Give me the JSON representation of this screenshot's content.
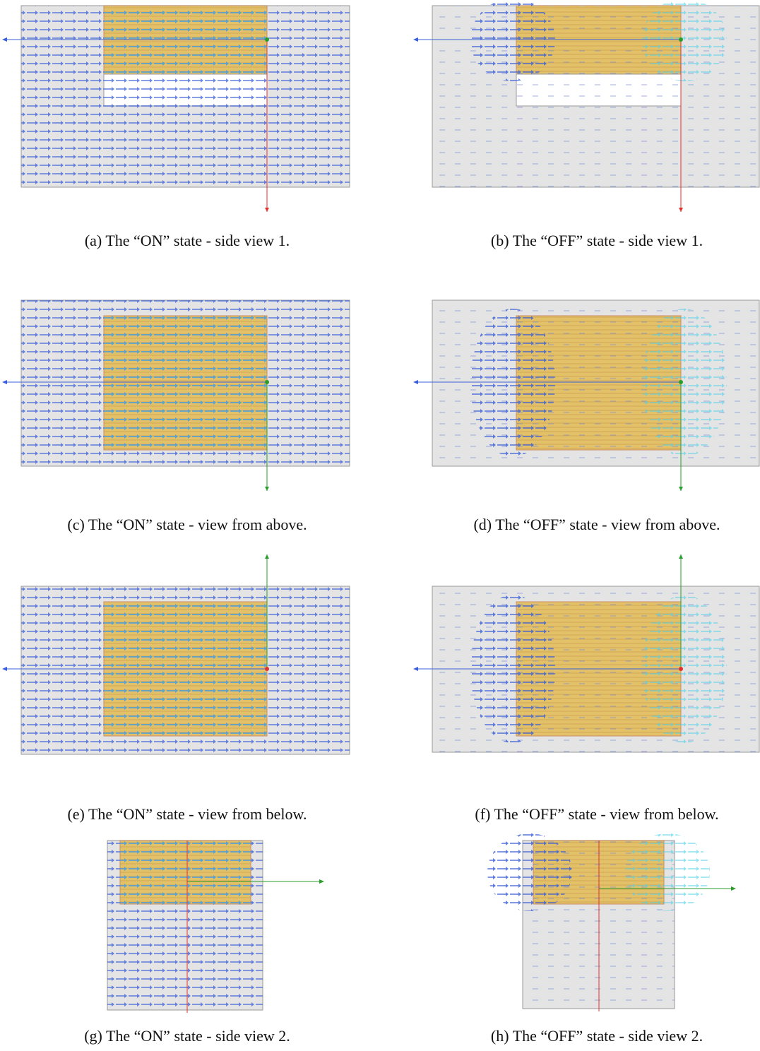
{
  "panels": [
    {
      "caption": "(a) The “ON” state - side view 1."
    },
    {
      "caption": "(b) The “OFF” state - side view 1."
    },
    {
      "caption": "(c) The “ON” state - view from above."
    },
    {
      "caption": "(d) The “OFF” state - view from above."
    },
    {
      "caption": "(e) The “ON” state - view from below."
    },
    {
      "caption": "(f) The “OFF” state - view from below."
    },
    {
      "caption": "(g) The “ON” state - side view 2."
    },
    {
      "caption": "(h) The “OFF” state - side view 2."
    }
  ]
}
